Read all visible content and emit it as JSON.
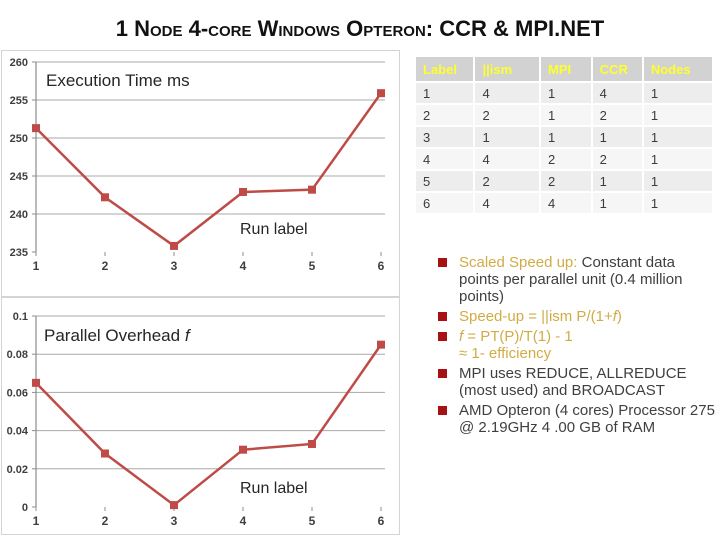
{
  "slide": {
    "title": "1 Node 4-core Windows Opteron: CCR & MPI.NET"
  },
  "colors": {
    "series_red": "#BE4B48",
    "bullet_red": "#A81014",
    "gold_text": "#D1AC45",
    "dark_text": "#3F3F3F",
    "grid_gray": "#A8A8A8",
    "axis_gray": "#8C8C8C",
    "table_header_bg": "#D2D2D2",
    "table_header_text": "#FFFF2E",
    "row_odd_bg": "#EDEDED",
    "row_even_bg": "#F6F6F6"
  },
  "chart_data": [
    {
      "type": "line",
      "title": "Execution Time ms",
      "title_italic_tail": "",
      "xlabel": "Run label",
      "x": [
        1,
        2,
        3,
        4,
        5,
        6
      ],
      "values": [
        251.3,
        242.2,
        235.8,
        242.9,
        243.2,
        255.9
      ],
      "ylim": [
        235,
        260
      ],
      "yticks": [
        260,
        255,
        250,
        245,
        240,
        235
      ],
      "ytick_labels": [
        "260",
        "255",
        "250",
        "245",
        "240",
        "235"
      ],
      "grid": true,
      "legend": "none",
      "marker": "square"
    },
    {
      "type": "line",
      "title": "Parallel Overhead ",
      "title_italic_tail": "f",
      "xlabel": "Run label",
      "x": [
        1,
        2,
        3,
        4,
        5,
        6
      ],
      "values": [
        0.065,
        0.028,
        0.001,
        0.03,
        0.033,
        0.085
      ],
      "ylim": [
        0,
        0.1
      ],
      "yticks": [
        0.1,
        0.08,
        0.06,
        0.04,
        0.02,
        0
      ],
      "ytick_labels": [
        "0.1",
        "0.08",
        "0.06",
        "0.04",
        "0.02",
        "0"
      ],
      "grid": true,
      "legend": "none",
      "marker": "square"
    }
  ],
  "table": {
    "headers": [
      "Label",
      "||ism",
      "MPI",
      "CCR",
      "Nodes"
    ],
    "rows": [
      [
        "1",
        "4",
        "1",
        "4",
        "1"
      ],
      [
        "2",
        "2",
        "1",
        "2",
        "1"
      ],
      [
        "3",
        "1",
        "1",
        "1",
        "1"
      ],
      [
        "4",
        "4",
        "2",
        "2",
        "1"
      ],
      [
        "5",
        "2",
        "2",
        "1",
        "1"
      ],
      [
        "6",
        "4",
        "4",
        "1",
        "1"
      ]
    ]
  },
  "bullets": [
    {
      "segments": [
        {
          "text": "Scaled Speed up:",
          "color": "gold"
        },
        {
          "text": " Constant data points per parallel unit (0.4 million points)",
          "color": "dark"
        }
      ]
    },
    {
      "segments": [
        {
          "text": "Speed-up = ||ism P/(1+",
          "color": "gold"
        },
        {
          "text": "f",
          "color": "gold",
          "italic": true
        },
        {
          "text": ")",
          "color": "gold"
        }
      ]
    },
    {
      "segments": [
        {
          "text": "f",
          "color": "gold",
          "italic": true
        },
        {
          "text": " = PT(P)/T(1)  - 1",
          "color": "gold"
        },
        {
          "text": "≈ 1- efficiency",
          "color": "gold",
          "break_before": true
        }
      ]
    },
    {
      "segments": [
        {
          "text": "MPI uses REDUCE, ALLREDUCE (most used) and BROADCAST",
          "color": "dark"
        }
      ]
    },
    {
      "segments": [
        {
          "text": "AMD Opteron (4 cores) Processor 275 @ 2.19GHz 4 .00 GB of RAM",
          "color": "dark"
        }
      ]
    }
  ]
}
